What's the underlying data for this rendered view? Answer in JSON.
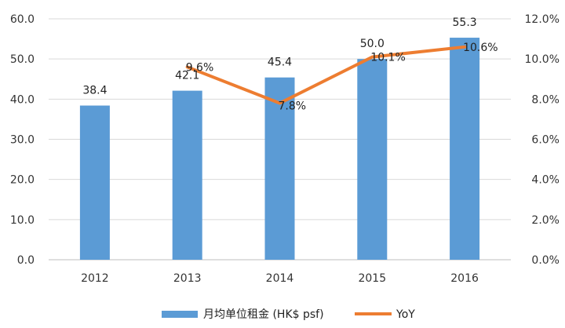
{
  "chart_data": {
    "type": "bar",
    "categories": [
      "2012",
      "2013",
      "2014",
      "2015",
      "2016"
    ],
    "series": [
      {
        "name": "月均单位租金 (HK$ psf)",
        "type": "bar",
        "axis": "left",
        "color": "#5b9bd5",
        "values": [
          38.4,
          42.1,
          45.4,
          50.0,
          55.3
        ],
        "labels": [
          "38.4",
          "42.1",
          "45.4",
          "50.0",
          "55.3"
        ]
      },
      {
        "name": "YoY",
        "type": "line",
        "axis": "right",
        "color": "#ed7d31",
        "values": [
          null,
          9.6,
          7.8,
          10.1,
          10.6
        ],
        "labels": [
          null,
          "9.6%",
          "7.8%",
          "10.1%",
          "10.6%"
        ]
      }
    ],
    "y_left": {
      "min": 0,
      "max": 60,
      "step": 10,
      "ticks": [
        "0.0",
        "10.0",
        "20.0",
        "30.0",
        "40.0",
        "50.0",
        "60.0"
      ]
    },
    "y_right": {
      "min": 0,
      "max": 12,
      "step": 2,
      "ticks": [
        "0.0%",
        "2.0%",
        "4.0%",
        "6.0%",
        "8.0%",
        "10.0%",
        "12.0%"
      ]
    },
    "grid": true,
    "legend_position": "bottom"
  }
}
